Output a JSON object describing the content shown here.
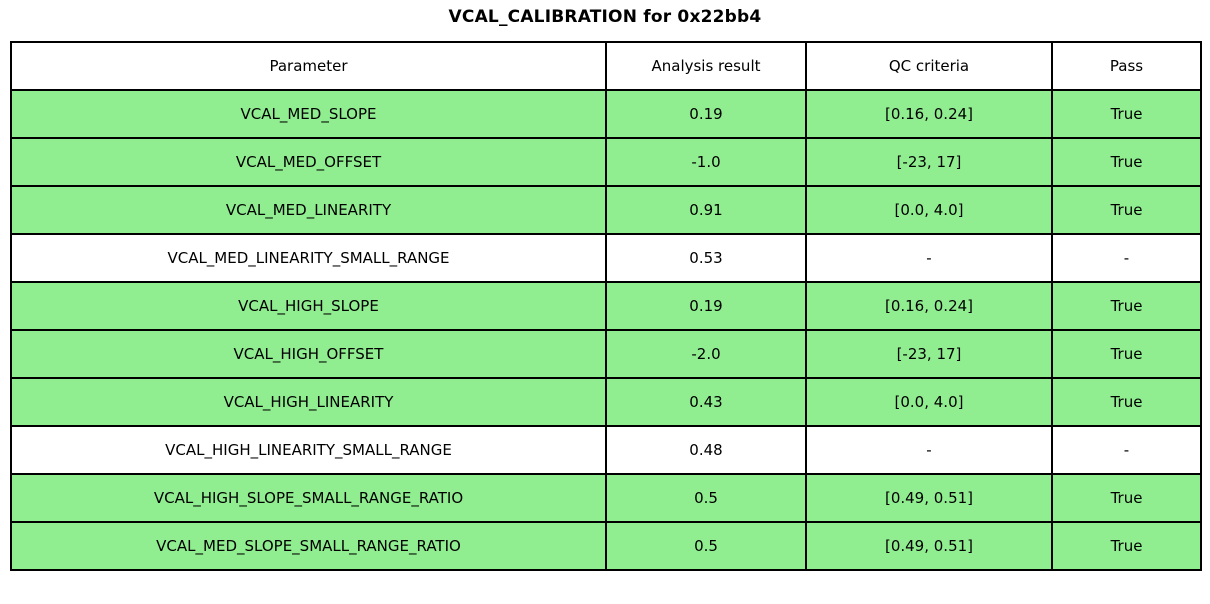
{
  "title": "VCAL_CALIBRATION for 0x22bb4",
  "colors": {
    "pass_row": "#90EE90",
    "neutral_row": "#ffffff",
    "border": "#000000",
    "text": "#000000"
  },
  "chart_data": {
    "type": "table",
    "title": "VCAL_CALIBRATION for 0x22bb4",
    "columns": [
      "Parameter",
      "Analysis result",
      "QC criteria",
      "Pass"
    ],
    "rows": [
      {
        "parameter": "VCAL_MED_SLOPE",
        "analysis_result": "0.19",
        "qc_criteria": "[0.16, 0.24]",
        "pass": "True",
        "highlighted": true
      },
      {
        "parameter": "VCAL_MED_OFFSET",
        "analysis_result": "-1.0",
        "qc_criteria": "[-23, 17]",
        "pass": "True",
        "highlighted": true
      },
      {
        "parameter": "VCAL_MED_LINEARITY",
        "analysis_result": "0.91",
        "qc_criteria": "[0.0, 4.0]",
        "pass": "True",
        "highlighted": true
      },
      {
        "parameter": "VCAL_MED_LINEARITY_SMALL_RANGE",
        "analysis_result": "0.53",
        "qc_criteria": "-",
        "pass": "-",
        "highlighted": false
      },
      {
        "parameter": "VCAL_HIGH_SLOPE",
        "analysis_result": "0.19",
        "qc_criteria": "[0.16, 0.24]",
        "pass": "True",
        "highlighted": true
      },
      {
        "parameter": "VCAL_HIGH_OFFSET",
        "analysis_result": "-2.0",
        "qc_criteria": "[-23, 17]",
        "pass": "True",
        "highlighted": true
      },
      {
        "parameter": "VCAL_HIGH_LINEARITY",
        "analysis_result": "0.43",
        "qc_criteria": "[0.0, 4.0]",
        "pass": "True",
        "highlighted": true
      },
      {
        "parameter": "VCAL_HIGH_LINEARITY_SMALL_RANGE",
        "analysis_result": "0.48",
        "qc_criteria": "-",
        "pass": "-",
        "highlighted": false
      },
      {
        "parameter": "VCAL_HIGH_SLOPE_SMALL_RANGE_RATIO",
        "analysis_result": "0.5",
        "qc_criteria": "[0.49, 0.51]",
        "pass": "True",
        "highlighted": true
      },
      {
        "parameter": "VCAL_MED_SLOPE_SMALL_RANGE_RATIO",
        "analysis_result": "0.5",
        "qc_criteria": "[0.49, 0.51]",
        "pass": "True",
        "highlighted": true
      }
    ]
  }
}
